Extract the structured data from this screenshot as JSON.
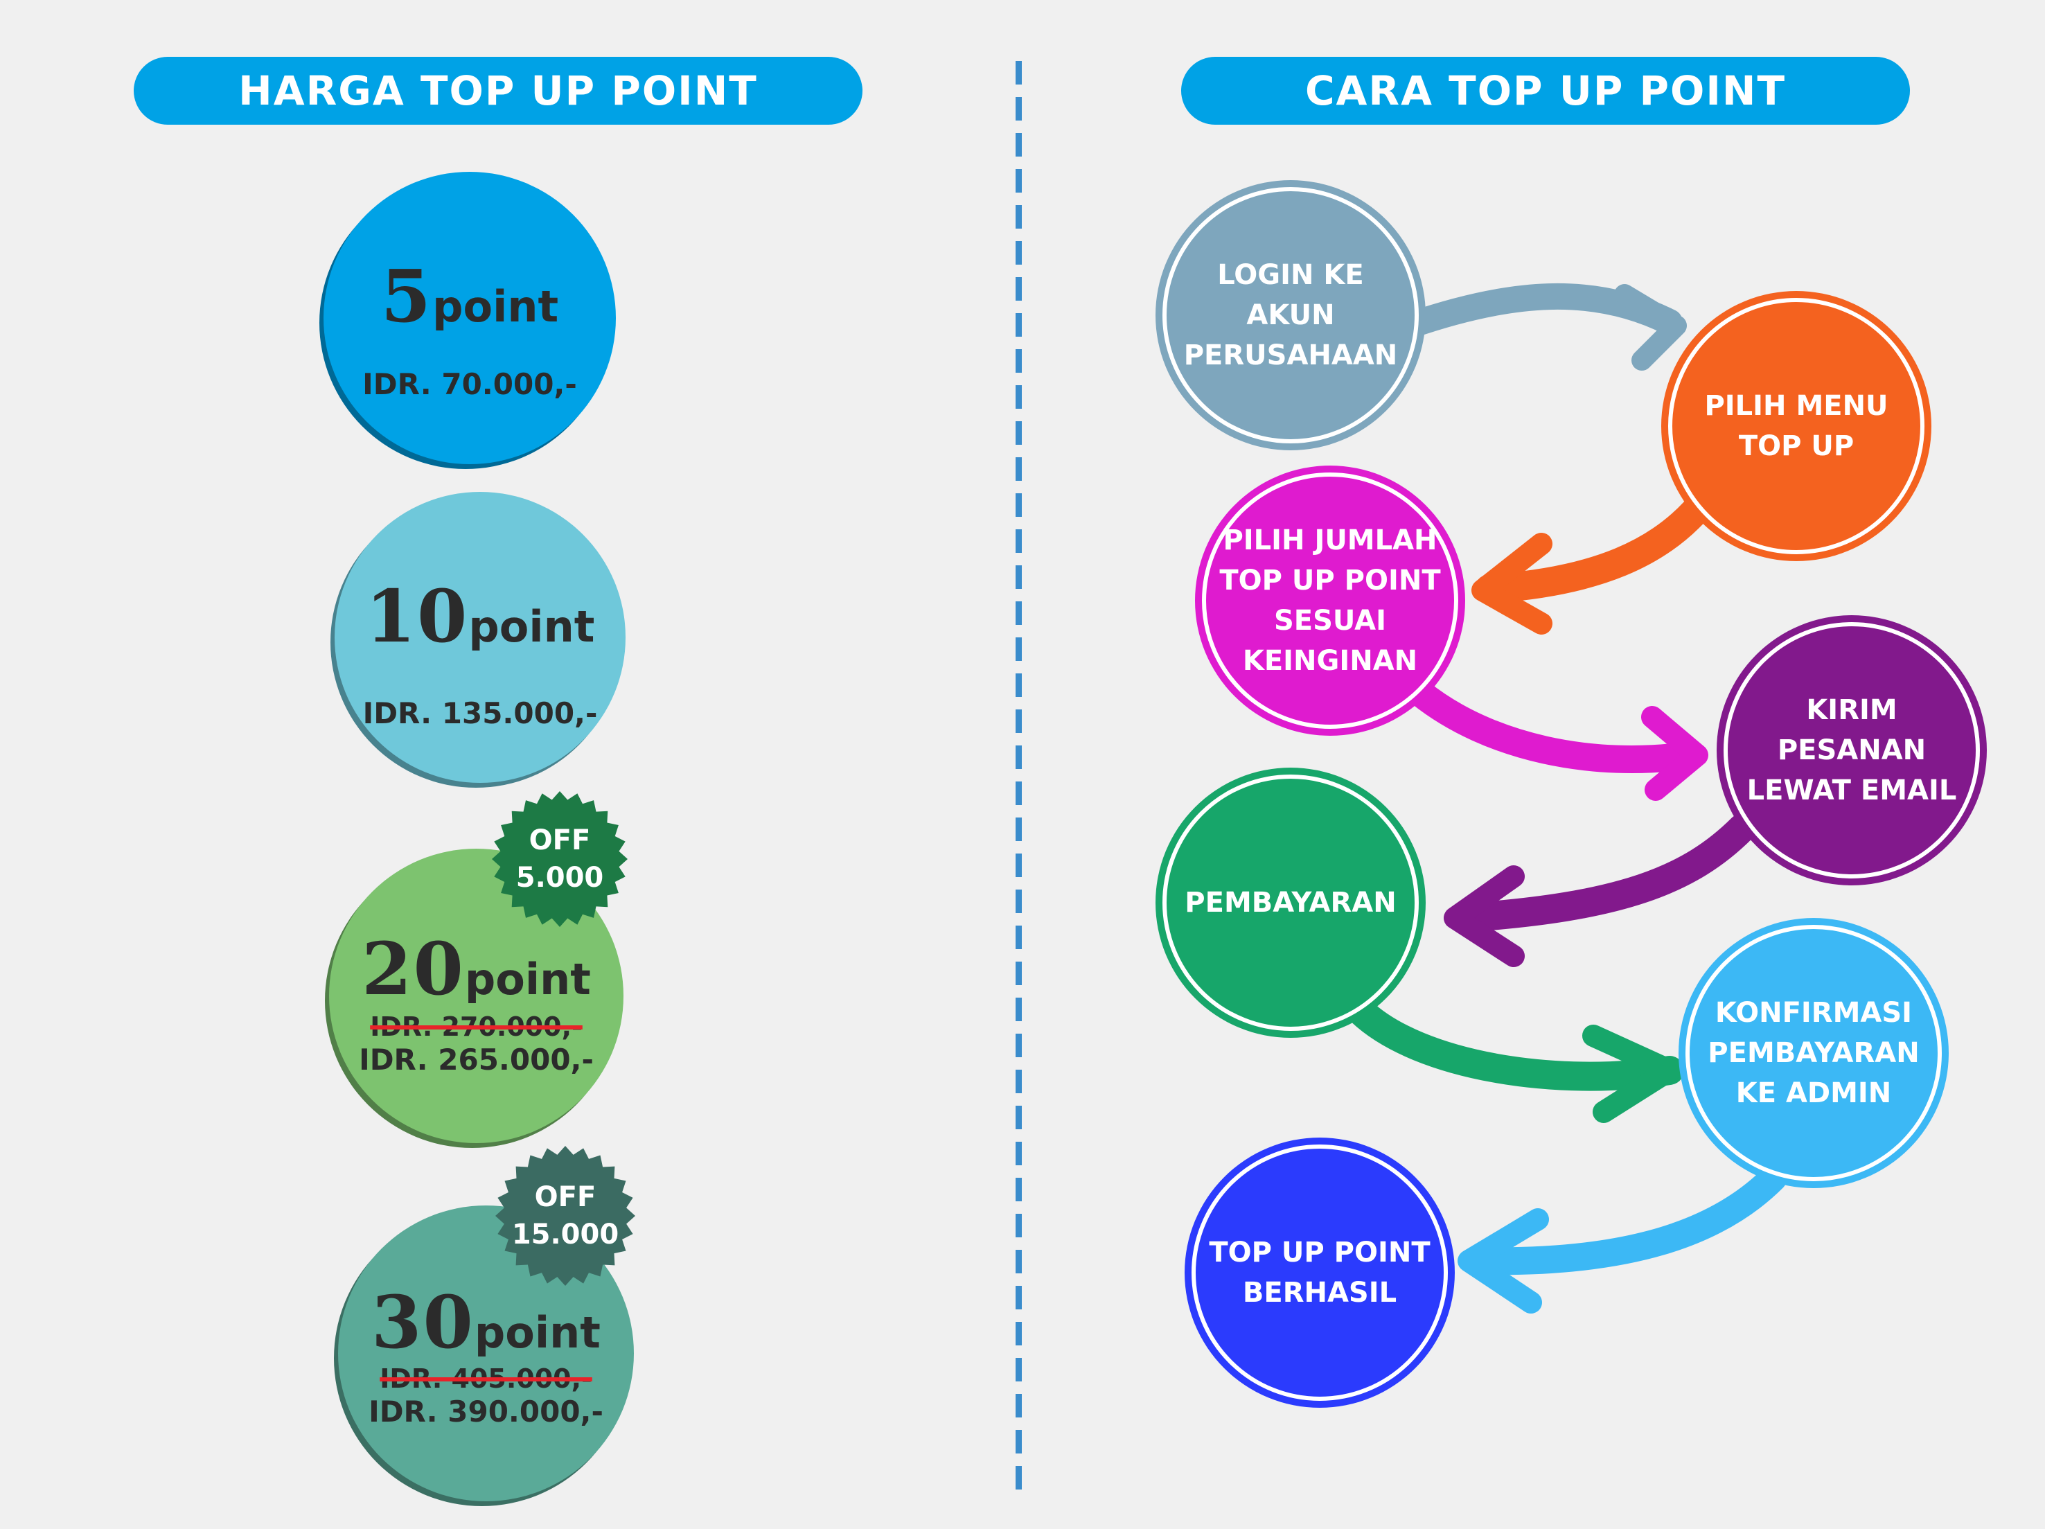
{
  "left_header": "HARGA TOP UP POINT",
  "right_header": "CARA TOP UP POINT",
  "packages": [
    {
      "points": "5",
      "unit": "point",
      "price": "IDR. 70.000,-",
      "color": "#00a2e6"
    },
    {
      "points": "10",
      "unit": "point",
      "price": "IDR. 135.000,-",
      "color": "#6fc8da"
    },
    {
      "points": "20",
      "unit": "point",
      "old_price": "IDR. 270.000,-",
      "price": "IDR. 265.000,-",
      "badge": [
        "OFF",
        "5.000"
      ],
      "color": "#7dc36f",
      "badge_color": "#1d7a45"
    },
    {
      "points": "30",
      "unit": "point",
      "old_price": "IDR. 405.000,-",
      "price": "IDR. 390.000,-",
      "badge": [
        "OFF",
        "15.000"
      ],
      "color": "#5aaa98",
      "badge_color": "#3b6b62"
    }
  ],
  "steps": [
    {
      "lines": [
        "LOGIN KE",
        "AKUN",
        "PERUSAHAAN"
      ],
      "color": "#7ea6bd"
    },
    {
      "lines": [
        "PILIH MENU",
        "TOP UP"
      ],
      "color": "#f4621f"
    },
    {
      "lines": [
        "PILIH JUMLAH",
        "TOP UP POINT",
        "SESUAI",
        "KEINGINAN"
      ],
      "color": "#df1bcf"
    },
    {
      "lines": [
        "KIRIM",
        "PESANAN",
        "LEWAT EMAIL"
      ],
      "color": "#82198c"
    },
    {
      "lines": [
        "PEMBAYARAN"
      ],
      "color": "#17a66a"
    },
    {
      "lines": [
        "KONFIRMASI",
        "PEMBAYARAN",
        "KE ADMIN"
      ],
      "color": "#3cb8f5"
    },
    {
      "lines": [
        "TOP UP POINT",
        "BERHASIL"
      ],
      "color": "#2b3bfd"
    }
  ]
}
